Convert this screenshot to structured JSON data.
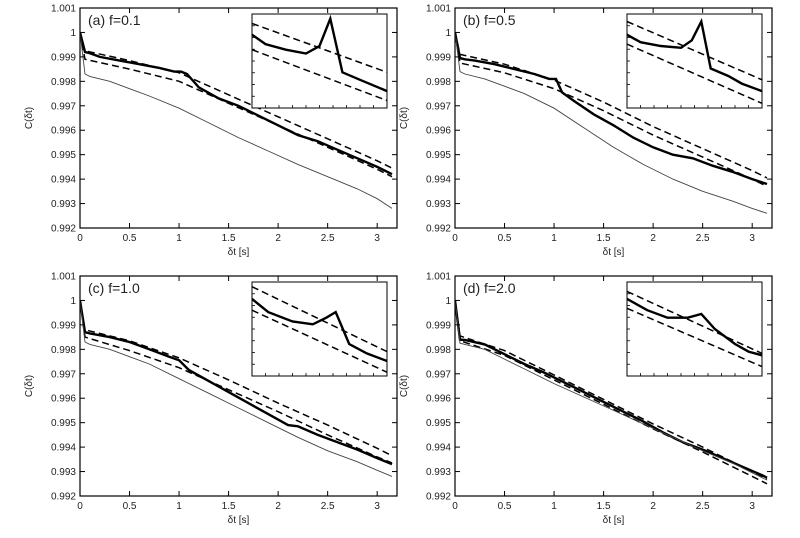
{
  "chart_data": [
    {
      "type": "line",
      "panel_label": "(a) f=0.1",
      "xlabel": "δt [s]",
      "ylabel": "C(δt)",
      "xlim": [
        0,
        3.2
      ],
      "ylim": [
        0.992,
        1.001
      ],
      "xticks": [
        "0",
        "0.5",
        "1",
        "1.5",
        "2",
        "2.5",
        "3"
      ],
      "yticks": [
        "0.992",
        "0.993",
        "0.994",
        "0.995",
        "0.996",
        "0.997",
        "0.998",
        "0.999",
        "1",
        "1.001"
      ],
      "grid": false,
      "series": [
        {
          "style": "thick",
          "x": [
            0,
            0.05,
            0.1,
            0.2,
            0.4,
            0.6,
            0.8,
            0.95,
            1.02,
            1.08,
            1.2,
            1.4,
            1.6,
            1.8,
            2.0,
            2.2,
            2.4,
            2.6,
            2.8,
            3.0,
            3.15
          ],
          "y": [
            1.0,
            0.9992,
            0.99915,
            0.999,
            0.99885,
            0.9987,
            0.99855,
            0.9984,
            0.9984,
            0.9983,
            0.99775,
            0.9973,
            0.997,
            0.9966,
            0.9962,
            0.9958,
            0.99555,
            0.9952,
            0.99485,
            0.9945,
            0.9942
          ]
        },
        {
          "style": "dashed",
          "x": [
            0,
            0.05,
            0.5,
            1.0,
            1.5,
            2.0,
            2.5,
            3.0,
            3.15
          ],
          "y": [
            1.0,
            0.99925,
            0.99885,
            0.99835,
            0.99745,
            0.99655,
            0.99565,
            0.99475,
            0.99445
          ]
        },
        {
          "style": "dashed",
          "x": [
            0,
            0.05,
            0.5,
            1.0,
            1.5,
            2.0,
            2.5,
            3.0,
            3.15
          ],
          "y": [
            1.0,
            0.9989,
            0.9985,
            0.998,
            0.9971,
            0.9962,
            0.9953,
            0.9944,
            0.9941
          ]
        },
        {
          "style": "thin",
          "x": [
            0,
            0.05,
            0.1,
            0.3,
            0.5,
            0.7,
            1.0,
            1.3,
            1.6,
            1.9,
            2.2,
            2.5,
            2.8,
            3.0,
            3.15
          ],
          "y": [
            1.0,
            0.9983,
            0.9982,
            0.998,
            0.9977,
            0.9974,
            0.9969,
            0.9963,
            0.9957,
            0.99515,
            0.9946,
            0.9941,
            0.9936,
            0.9932,
            0.9928
          ]
        }
      ],
      "inset": {
        "series": [
          {
            "style": "thick",
            "points": [
              [
                0,
                0.22
              ],
              [
                0.1,
                0.32
              ],
              [
                0.25,
                0.38
              ],
              [
                0.4,
                0.42
              ],
              [
                0.5,
                0.34
              ],
              [
                0.58,
                0.05
              ],
              [
                0.67,
                0.62
              ],
              [
                0.8,
                0.7
              ],
              [
                1.0,
                0.82
              ]
            ]
          },
          {
            "style": "dashed",
            "points": [
              [
                0,
                0.1
              ],
              [
                1.0,
                0.62
              ]
            ]
          },
          {
            "style": "dashed",
            "points": [
              [
                0,
                0.38
              ],
              [
                1.0,
                0.92
              ]
            ]
          }
        ]
      }
    },
    {
      "type": "line",
      "panel_label": "(b) f=0.5",
      "xlabel": "δt [s]",
      "ylabel": "C(δt)",
      "xlim": [
        0,
        3.2
      ],
      "ylim": [
        0.992,
        1.001
      ],
      "xticks": [
        "0",
        "0.5",
        "1",
        "1.5",
        "2",
        "2.5",
        "3"
      ],
      "yticks": [
        "0.992",
        "0.993",
        "0.994",
        "0.995",
        "0.996",
        "0.997",
        "0.998",
        "0.999",
        "1",
        "1.001"
      ],
      "grid": false,
      "series": [
        {
          "style": "thick",
          "x": [
            0,
            0.05,
            0.1,
            0.2,
            0.4,
            0.6,
            0.8,
            0.95,
            1.02,
            1.08,
            1.2,
            1.4,
            1.6,
            1.8,
            2.0,
            2.2,
            2.4,
            2.6,
            2.8,
            3.0,
            3.15
          ],
          "y": [
            1.0,
            0.99895,
            0.9989,
            0.99885,
            0.9987,
            0.9985,
            0.9983,
            0.9981,
            0.9981,
            0.99755,
            0.9972,
            0.99665,
            0.9962,
            0.9957,
            0.9953,
            0.995,
            0.99485,
            0.99455,
            0.9943,
            0.994,
            0.9938
          ]
        },
        {
          "style": "dashed",
          "x": [
            0,
            0.05,
            0.5,
            1.0,
            1.5,
            2.0,
            2.5,
            3.0,
            3.15
          ],
          "y": [
            1.0,
            0.9991,
            0.9987,
            0.99805,
            0.99715,
            0.99615,
            0.99525,
            0.99435,
            0.99405
          ]
        },
        {
          "style": "dashed",
          "x": [
            0,
            0.05,
            0.5,
            1.0,
            1.5,
            2.0,
            2.5,
            3.0,
            3.15
          ],
          "y": [
            1.0,
            0.99875,
            0.99835,
            0.9977,
            0.9968,
            0.9958,
            0.9949,
            0.994,
            0.9937
          ]
        },
        {
          "style": "thin",
          "x": [
            0,
            0.05,
            0.1,
            0.3,
            0.5,
            0.7,
            1.0,
            1.3,
            1.6,
            1.9,
            2.2,
            2.5,
            2.8,
            3.0,
            3.15
          ],
          "y": [
            1.0,
            0.9984,
            0.9983,
            0.9981,
            0.9978,
            0.9975,
            0.9969,
            0.9961,
            0.9953,
            0.9946,
            0.994,
            0.9935,
            0.9931,
            0.9928,
            0.9926
          ]
        }
      ],
      "inset": {
        "series": [
          {
            "style": "thick",
            "points": [
              [
                0,
                0.22
              ],
              [
                0.1,
                0.3
              ],
              [
                0.25,
                0.34
              ],
              [
                0.4,
                0.36
              ],
              [
                0.48,
                0.28
              ],
              [
                0.55,
                0.08
              ],
              [
                0.62,
                0.58
              ],
              [
                0.75,
                0.66
              ],
              [
                0.85,
                0.74
              ],
              [
                1.0,
                0.82
              ]
            ]
          },
          {
            "style": "dashed",
            "points": [
              [
                0,
                0.08
              ],
              [
                1.0,
                0.7
              ]
            ]
          },
          {
            "style": "dashed",
            "points": [
              [
                0,
                0.32
              ],
              [
                1.0,
                0.95
              ]
            ]
          }
        ]
      }
    },
    {
      "type": "line",
      "panel_label": "(c) f=1.0",
      "xlabel": "δt [s]",
      "ylabel": "C(δt)",
      "xlim": [
        0,
        3.2
      ],
      "ylim": [
        0.992,
        1.001
      ],
      "xticks": [
        "0",
        "0.5",
        "1",
        "1.5",
        "2",
        "2.5",
        "3"
      ],
      "yticks": [
        "0.992",
        "0.993",
        "0.994",
        "0.995",
        "0.996",
        "0.997",
        "0.998",
        "0.999",
        "1",
        "1.001"
      ],
      "grid": false,
      "series": [
        {
          "style": "thick",
          "x": [
            0,
            0.05,
            0.1,
            0.3,
            0.5,
            0.7,
            0.9,
            1.0,
            1.1,
            1.3,
            1.5,
            1.7,
            1.9,
            2.1,
            2.2,
            2.4,
            2.6,
            2.8,
            3.0,
            3.15
          ],
          "y": [
            1.0,
            0.9987,
            0.99865,
            0.9985,
            0.9983,
            0.998,
            0.9977,
            0.99755,
            0.99715,
            0.9967,
            0.99625,
            0.9958,
            0.99535,
            0.9949,
            0.99485,
            0.9945,
            0.9942,
            0.9939,
            0.99355,
            0.9933
          ]
        },
        {
          "style": "dashed",
          "x": [
            0,
            0.05,
            0.5,
            1.0,
            1.5,
            2.0,
            2.5,
            3.0,
            3.15
          ],
          "y": [
            1.0,
            0.9988,
            0.99835,
            0.99765,
            0.99675,
            0.9958,
            0.9949,
            0.99395,
            0.99365
          ]
        },
        {
          "style": "dashed",
          "x": [
            0,
            0.05,
            0.5,
            1.0,
            1.5,
            2.0,
            2.5,
            3.0,
            3.15
          ],
          "y": [
            1.0,
            0.9985,
            0.99795,
            0.99725,
            0.99635,
            0.99545,
            0.9945,
            0.9936,
            0.99335
          ]
        },
        {
          "style": "thin",
          "x": [
            0,
            0.05,
            0.1,
            0.3,
            0.5,
            0.7,
            1.0,
            1.3,
            1.6,
            1.9,
            2.2,
            2.5,
            2.8,
            3.0,
            3.15
          ],
          "y": [
            1.0,
            0.9983,
            0.9982,
            0.998,
            0.9977,
            0.9974,
            0.9968,
            0.9962,
            0.9956,
            0.995,
            0.9944,
            0.99385,
            0.9934,
            0.99305,
            0.9928
          ]
        }
      ],
      "inset": {
        "series": [
          {
            "style": "thick",
            "points": [
              [
                0,
                0.18
              ],
              [
                0.12,
                0.32
              ],
              [
                0.3,
                0.42
              ],
              [
                0.45,
                0.45
              ],
              [
                0.55,
                0.38
              ],
              [
                0.62,
                0.32
              ],
              [
                0.72,
                0.66
              ],
              [
                0.85,
                0.76
              ],
              [
                1.0,
                0.84
              ]
            ]
          },
          {
            "style": "dashed",
            "points": [
              [
                0,
                0.05
              ],
              [
                1.0,
                0.74
              ]
            ]
          },
          {
            "style": "dashed",
            "points": [
              [
                0,
                0.3
              ],
              [
                1.0,
                0.96
              ]
            ]
          }
        ]
      }
    },
    {
      "type": "line",
      "panel_label": "(d) f=2.0",
      "xlabel": "δt [s]",
      "ylabel": "C(δt)",
      "xlim": [
        0,
        3.2
      ],
      "ylim": [
        0.992,
        1.001
      ],
      "xticks": [
        "0",
        "0.5",
        "1",
        "1.5",
        "2",
        "2.5",
        "3"
      ],
      "yticks": [
        "0.992",
        "0.993",
        "0.994",
        "0.995",
        "0.996",
        "0.997",
        "0.998",
        "0.999",
        "1",
        "1.001"
      ],
      "grid": false,
      "series": [
        {
          "style": "thick",
          "x": [
            0,
            0.05,
            0.1,
            0.3,
            0.5,
            0.7,
            0.9,
            1.1,
            1.3,
            1.5,
            1.7,
            1.9,
            2.1,
            2.3,
            2.5,
            2.7,
            2.9,
            3.1,
            3.15
          ],
          "y": [
            1.0,
            0.9984,
            0.99838,
            0.9982,
            0.9978,
            0.9974,
            0.99705,
            0.99665,
            0.99625,
            0.99585,
            0.99545,
            0.99505,
            0.9946,
            0.9942,
            0.9939,
            0.99355,
            0.9932,
            0.99285,
            0.99275
          ]
        },
        {
          "style": "dashed",
          "x": [
            0,
            0.05,
            0.5,
            1.0,
            1.5,
            2.0,
            2.5,
            3.0,
            3.15
          ],
          "y": [
            1.0,
            0.99855,
            0.99795,
            0.99695,
            0.99595,
            0.99495,
            0.994,
            0.993,
            0.9927
          ]
        },
        {
          "style": "dashed",
          "x": [
            0,
            0.05,
            0.5,
            1.0,
            1.5,
            2.0,
            2.5,
            3.0,
            3.15
          ],
          "y": [
            1.0,
            0.99835,
            0.99775,
            0.99675,
            0.99575,
            0.99475,
            0.9938,
            0.9928,
            0.9925
          ]
        },
        {
          "style": "thin",
          "x": [
            0,
            0.05,
            0.1,
            0.3,
            0.5,
            0.7,
            1.0,
            1.3,
            1.6,
            1.9,
            2.2,
            2.5,
            2.8,
            3.0,
            3.15
          ],
          "y": [
            1.0,
            0.99825,
            0.9982,
            0.998,
            0.9976,
            0.9972,
            0.9966,
            0.99605,
            0.9955,
            0.99495,
            0.9944,
            0.99385,
            0.99335,
            0.99295,
            0.99265
          ]
        }
      ],
      "inset": {
        "series": [
          {
            "style": "thick",
            "points": [
              [
                0,
                0.18
              ],
              [
                0.15,
                0.3
              ],
              [
                0.3,
                0.38
              ],
              [
                0.45,
                0.38
              ],
              [
                0.55,
                0.34
              ],
              [
                0.65,
                0.5
              ],
              [
                0.8,
                0.66
              ],
              [
                0.9,
                0.74
              ],
              [
                1.0,
                0.78
              ]
            ]
          },
          {
            "style": "dashed",
            "points": [
              [
                0,
                0.1
              ],
              [
                1.0,
                0.76
              ]
            ]
          },
          {
            "style": "dashed",
            "points": [
              [
                0,
                0.28
              ],
              [
                1.0,
                0.9
              ]
            ]
          }
        ]
      }
    }
  ]
}
